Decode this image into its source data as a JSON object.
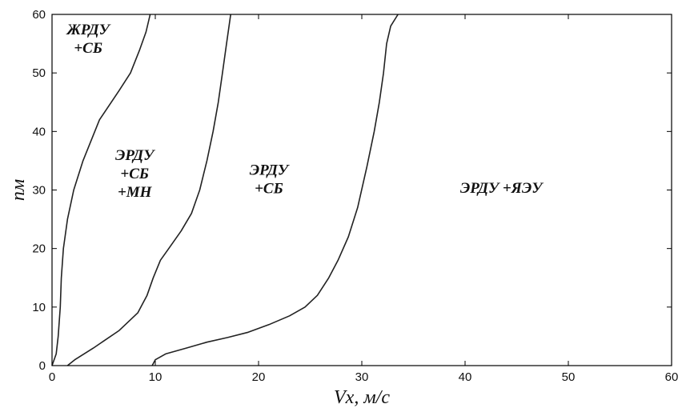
{
  "chart_data": {
    "type": "line",
    "xlabel": "Vx, м/с",
    "ylabel": "nм",
    "xlim": [
      0,
      60
    ],
    "ylim": [
      0,
      60
    ],
    "x_ticks": [
      0,
      10,
      20,
      30,
      40,
      50,
      60
    ],
    "y_ticks": [
      0,
      10,
      20,
      30,
      40,
      50,
      60
    ],
    "grid": false,
    "series": [
      {
        "values": [
          [
            0,
            0
          ],
          [
            0.4,
            2
          ],
          [
            0.6,
            5
          ],
          [
            0.8,
            10
          ],
          [
            0.9,
            15
          ],
          [
            1.1,
            20
          ],
          [
            1.5,
            25
          ],
          [
            2.1,
            30
          ],
          [
            3.0,
            35
          ],
          [
            4.6,
            42
          ],
          [
            6.5,
            47
          ],
          [
            7.6,
            50
          ],
          [
            8.5,
            54
          ],
          [
            9.1,
            57
          ],
          [
            9.5,
            60
          ]
        ]
      },
      {
        "values": [
          [
            1.5,
            0
          ],
          [
            2.2,
            1
          ],
          [
            4.0,
            3
          ],
          [
            6.5,
            6
          ],
          [
            8.3,
            9
          ],
          [
            9.2,
            12
          ],
          [
            9.8,
            15
          ],
          [
            10.5,
            18
          ],
          [
            11.3,
            20
          ],
          [
            12.5,
            23
          ],
          [
            13.5,
            26
          ],
          [
            14.3,
            30
          ],
          [
            15.0,
            35
          ],
          [
            15.6,
            40
          ],
          [
            16.1,
            45
          ],
          [
            16.5,
            50
          ],
          [
            16.9,
            55
          ],
          [
            17.3,
            60
          ]
        ]
      },
      {
        "values": [
          [
            9.7,
            0
          ],
          [
            10.0,
            1
          ],
          [
            11.0,
            2
          ],
          [
            13.0,
            3
          ],
          [
            15.0,
            4
          ],
          [
            17.0,
            4.8
          ],
          [
            19.0,
            5.7
          ],
          [
            21.0,
            7
          ],
          [
            23.0,
            8.5
          ],
          [
            24.5,
            10
          ],
          [
            25.7,
            12
          ],
          [
            26.8,
            15
          ],
          [
            27.7,
            18
          ],
          [
            28.7,
            22
          ],
          [
            29.6,
            27
          ],
          [
            30.5,
            34
          ],
          [
            31.2,
            40
          ],
          [
            31.7,
            45
          ],
          [
            32.1,
            50
          ],
          [
            32.4,
            55
          ],
          [
            32.8,
            58
          ],
          [
            33.5,
            60
          ]
        ]
      }
    ],
    "annotations": [
      {
        "lines": [
          "ЖРДУ",
          "+СБ"
        ],
        "x": 3.5,
        "y": 55
      },
      {
        "lines": [
          "ЭРДУ",
          "+СБ",
          "+МН"
        ],
        "x": 8.0,
        "y": 32
      },
      {
        "lines": [
          "ЭРДУ",
          "+СБ"
        ],
        "x": 21.0,
        "y": 31
      },
      {
        "lines": [
          "ЭРДУ +ЯЭУ"
        ],
        "x": 43.5,
        "y": 29.5
      }
    ]
  }
}
